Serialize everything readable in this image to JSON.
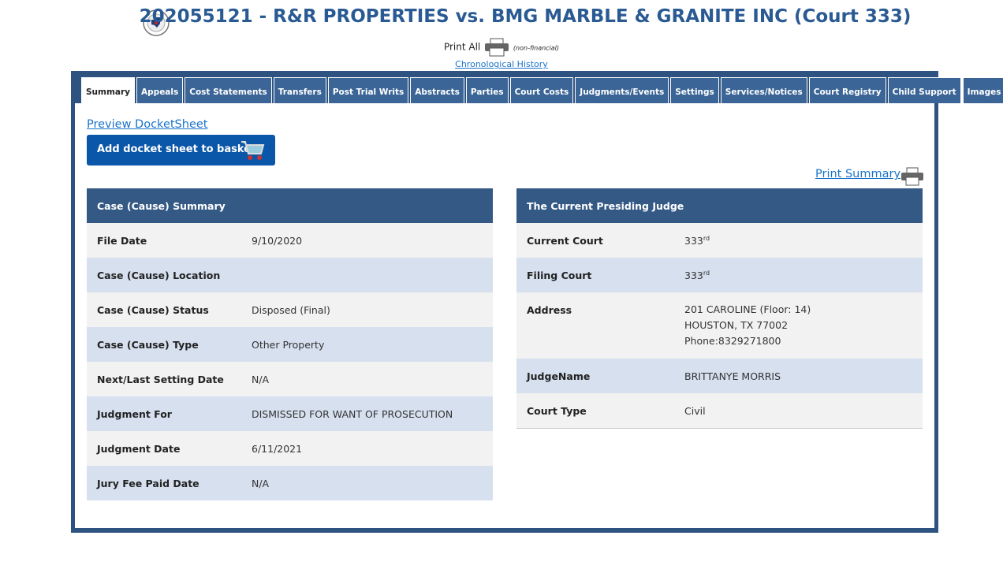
{
  "header": {
    "title": "202055121 - R&R PROPERTIES vs. BMG MARBLE & GRANITE INC (Court 333)",
    "print_all": "Print All",
    "print_note": "(non-financial)",
    "history_link": "Chronological History"
  },
  "tabs": [
    "Summary",
    "Appeals",
    "Cost Statements",
    "Transfers",
    "Post Trial Writs",
    "Abstracts",
    "Parties",
    "Court Costs",
    "Judgments/Events",
    "Settings",
    "Services/Notices",
    "Court Registry",
    "Child Support",
    "Images"
  ],
  "actions": {
    "preview": "Preview DocketSheet",
    "basket": "Add docket sheet to basket",
    "print_summary": "Print Summary"
  },
  "case_summary": {
    "title": "Case (Cause) Summary",
    "rows": [
      {
        "label": "File Date",
        "value": "9/10/2020"
      },
      {
        "label": "Case (Cause) Location",
        "value": ""
      },
      {
        "label": "Case (Cause) Status",
        "value": "Disposed (Final)"
      },
      {
        "label": "Case (Cause) Type",
        "value": "Other Property"
      },
      {
        "label": "Next/Last Setting Date",
        "value": "N/A"
      },
      {
        "label": "Judgment For",
        "value": "DISMISSED FOR WANT OF PROSECUTION"
      },
      {
        "label": "Judgment Date",
        "value": "6/11/2021"
      },
      {
        "label": "Jury Fee Paid Date",
        "value": "N/A"
      }
    ]
  },
  "judge": {
    "title": "The Current Presiding Judge",
    "rows": [
      {
        "label": "Current Court",
        "value": "333",
        "sup": "rd"
      },
      {
        "label": "Filing Court",
        "value": "333",
        "sup": "rd"
      },
      {
        "label": "Address",
        "lines": [
          "201 CAROLINE (Floor: 14)",
          "HOUSTON, TX 77002",
          "Phone:8329271800"
        ]
      },
      {
        "label": "JudgeName",
        "value": "BRITTANYE MORRIS"
      },
      {
        "label": "Court Type",
        "value": "Civil"
      }
    ]
  }
}
